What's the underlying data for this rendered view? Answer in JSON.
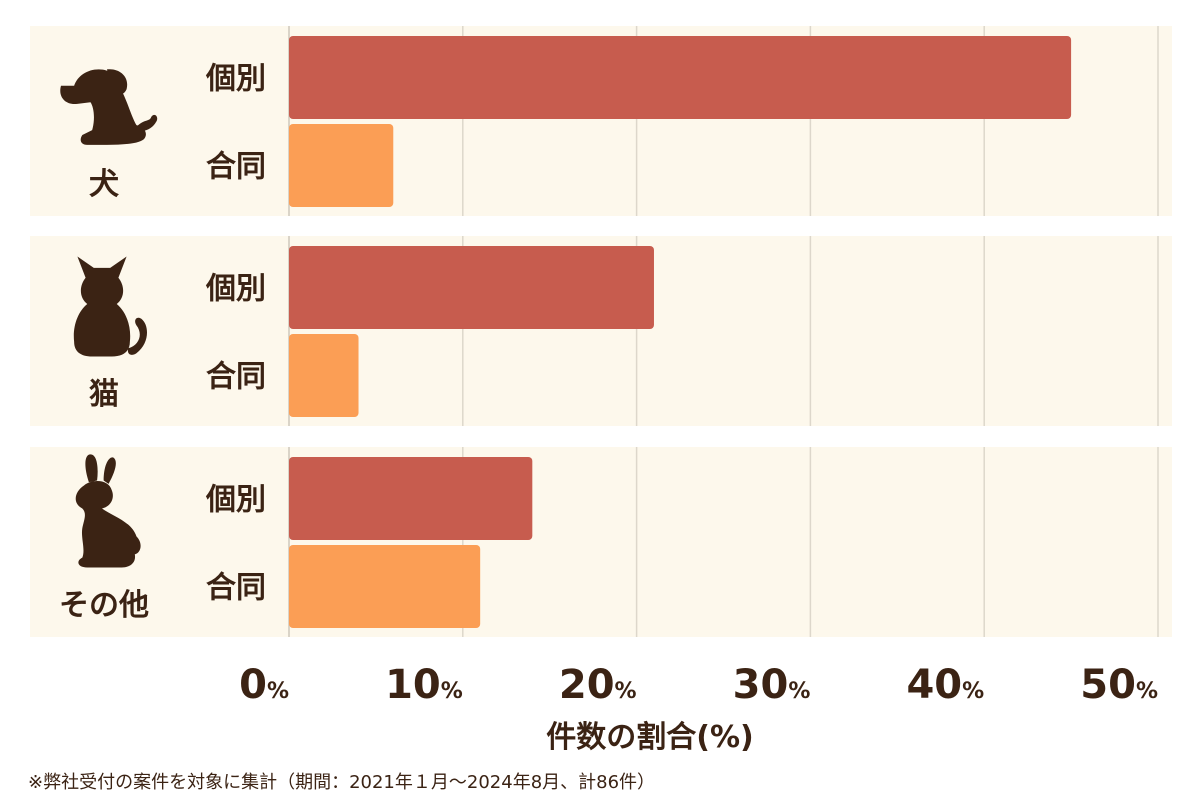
{
  "chart_data": {
    "type": "bar",
    "orientation": "horizontal",
    "groups": [
      {
        "label": "犬",
        "icon": "dog-icon",
        "bars": [
          {
            "label": "個別",
            "value": 45
          },
          {
            "label": "合同",
            "value": 6
          }
        ]
      },
      {
        "label": "猫",
        "icon": "cat-icon",
        "bars": [
          {
            "label": "個別",
            "value": 21
          },
          {
            "label": "合同",
            "value": 4
          }
        ]
      },
      {
        "label": "その他",
        "icon": "rabbit-icon",
        "bars": [
          {
            "label": "個別",
            "value": 14
          },
          {
            "label": "合同",
            "value": 11
          }
        ]
      }
    ],
    "xlim": [
      0,
      50
    ],
    "xticks": [
      0,
      10,
      20,
      30,
      40,
      50
    ],
    "tick_suffix": "%",
    "xlabel": "件数の割合(%)",
    "grid": true,
    "colors": {
      "個別": "#c75c4e",
      "合同": "#fb9e55",
      "band": "#fdf8ec",
      "icon": "#3b2314"
    }
  },
  "footnote": "※弊社受付の案件を対象に集計（期間：2021年１月〜2024年8月、計86件）"
}
